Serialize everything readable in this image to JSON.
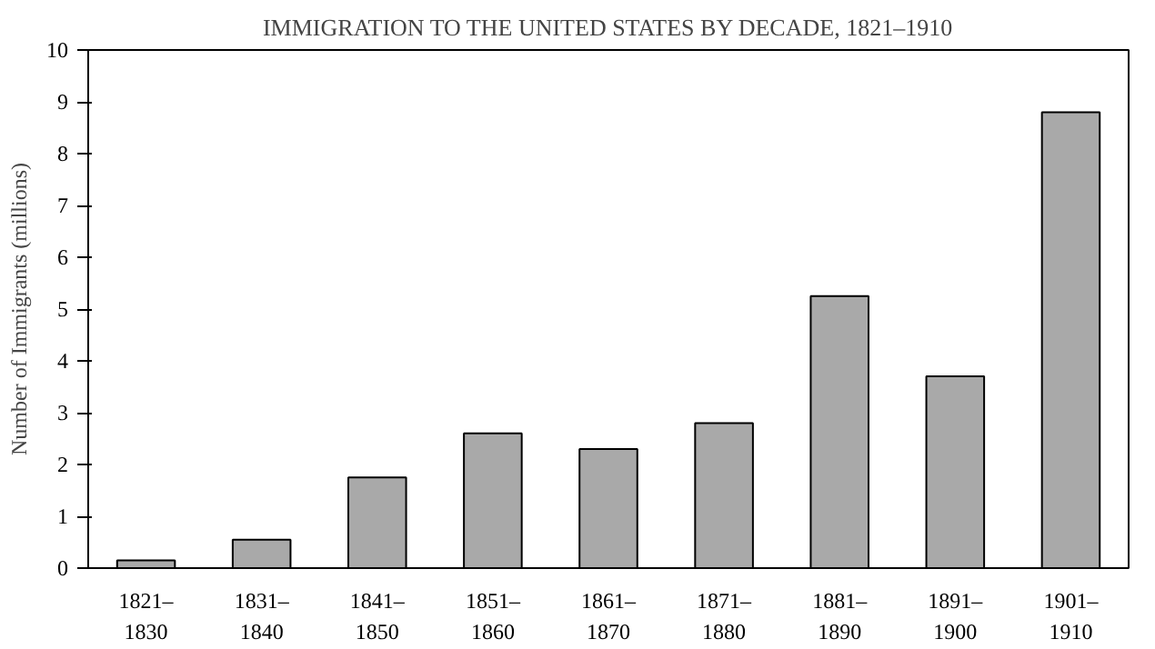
{
  "chart_data": {
    "type": "bar",
    "title": "IMMIGRATION TO THE UNITED STATES BY DECADE, 1821–1910",
    "ylabel": "Number of Immigrants (millions)",
    "categories": [
      "1821–\n1830",
      "1831–\n1840",
      "1841–\n1850",
      "1851–\n1860",
      "1861–\n1870",
      "1871–\n1880",
      "1881–\n1890",
      "1891–\n1900",
      "1901–\n1910"
    ],
    "values": [
      0.15,
      0.55,
      1.75,
      2.6,
      2.3,
      2.8,
      5.25,
      3.7,
      8.8
    ],
    "color": "#a9a9a9",
    "ylim": [
      0,
      10
    ],
    "yticks": [
      0,
      1,
      2,
      3,
      4,
      5,
      6,
      7,
      8,
      9,
      10
    ],
    "grid": false
  }
}
